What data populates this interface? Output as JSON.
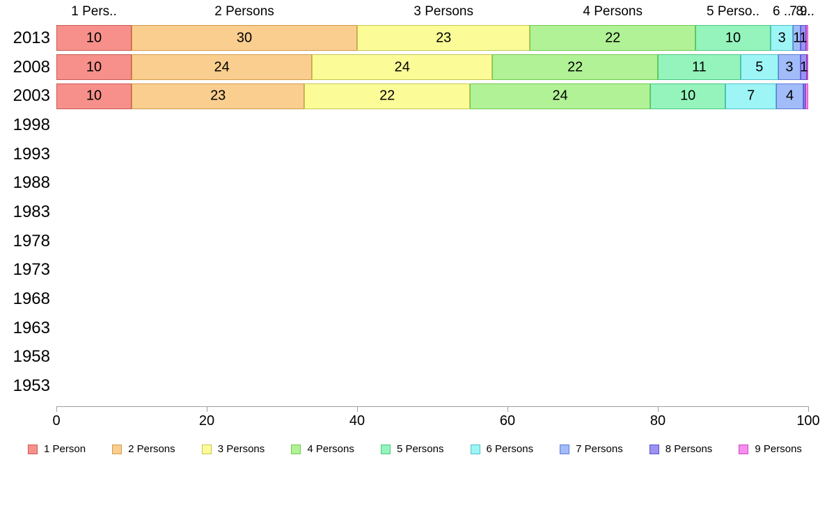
{
  "chart_data": {
    "type": "bar",
    "variant": "stacked-horizontal-percent",
    "title": "",
    "xlabel": "",
    "ylabel": "",
    "x_axis": {
      "min": 0,
      "max": 100,
      "ticks": [
        "0",
        "20",
        "40",
        "60",
        "80",
        "100"
      ]
    },
    "legend_position": "bottom",
    "grid": false,
    "categories": [
      "2013",
      "2008",
      "2003",
      "1998",
      "1993",
      "1988",
      "1983",
      "1978",
      "1973",
      "1968",
      "1963",
      "1958",
      "1953"
    ],
    "series": [
      {
        "name": "1 Person",
        "column_header": "1 Pers..",
        "fill": "#f7908a",
        "border": "#c85c55",
        "values": [
          10,
          10,
          10,
          null,
          null,
          null,
          null,
          null,
          null,
          null,
          null,
          null,
          null
        ]
      },
      {
        "name": "2 Persons",
        "column_header": "2 Persons",
        "fill": "#face8f",
        "border": "#d29b4b",
        "values": [
          30,
          24,
          23,
          null,
          null,
          null,
          null,
          null,
          null,
          null,
          null,
          null,
          null
        ]
      },
      {
        "name": "3 Persons",
        "column_header": "3 Persons",
        "fill": "#fbfb97",
        "border": "#c6c654",
        "values": [
          23,
          24,
          22,
          null,
          null,
          null,
          null,
          null,
          null,
          null,
          null,
          null,
          null
        ]
      },
      {
        "name": "4 Persons",
        "column_header": "4 Persons",
        "fill": "#b1f296",
        "border": "#71c94e",
        "values": [
          22,
          22,
          24,
          null,
          null,
          null,
          null,
          null,
          null,
          null,
          null,
          null,
          null
        ]
      },
      {
        "name": "5 Persons",
        "column_header": "5 Perso..",
        "fill": "#94f4bc",
        "border": "#4bc77f",
        "values": [
          10,
          11,
          10,
          null,
          null,
          null,
          null,
          null,
          null,
          null,
          null,
          null,
          null
        ]
      },
      {
        "name": "6 Persons",
        "column_header": "6 ..",
        "fill": "#9ef5f6",
        "border": "#4fc0c9",
        "values": [
          3,
          5,
          7,
          null,
          null,
          null,
          null,
          null,
          null,
          null,
          null,
          null,
          null
        ]
      },
      {
        "name": "7 Persons",
        "column_header": "7..",
        "fill": "#a1bcf8",
        "border": "#5e78d8",
        "values": [
          1,
          3,
          4,
          null,
          null,
          null,
          null,
          null,
          null,
          null,
          null,
          null,
          null
        ]
      },
      {
        "name": "8 Persons",
        "column_header": "8..",
        "fill": "#9c92f2",
        "border": "#5c4fd0",
        "values": [
          1,
          1,
          0,
          null,
          null,
          null,
          null,
          null,
          null,
          null,
          null,
          null,
          null
        ]
      },
      {
        "name": "9 Persons",
        "column_header": "9..",
        "fill": "#f78df0",
        "border": "#cc49c0",
        "values": [
          0,
          0,
          0,
          null,
          null,
          null,
          null,
          null,
          null,
          null,
          null,
          null,
          null
        ]
      }
    ],
    "rows": [
      {
        "labels": [
          "10",
          "30",
          "23",
          "22",
          "10",
          "3",
          "1",
          "1",
          ""
        ],
        "widths": [
          10,
          30,
          23,
          22,
          10,
          3,
          1,
          0.7,
          0.3
        ]
      },
      {
        "labels": [
          "10",
          "24",
          "24",
          "22",
          "11",
          "5",
          "3",
          "1",
          ""
        ],
        "widths": [
          10,
          24,
          24,
          22,
          11,
          5,
          3,
          0.85,
          0.15
        ]
      },
      {
        "labels": [
          "10",
          "23",
          "22",
          "24",
          "10",
          "7",
          "4",
          "",
          ""
        ],
        "widths": [
          10,
          23,
          22,
          24,
          10,
          6.75,
          3.6,
          0.25,
          0.4
        ]
      },
      {
        "labels": [],
        "widths": []
      },
      {
        "labels": [],
        "widths": []
      },
      {
        "labels": [],
        "widths": []
      },
      {
        "labels": [],
        "widths": []
      },
      {
        "labels": [],
        "widths": []
      },
      {
        "labels": [],
        "widths": []
      },
      {
        "labels": [],
        "widths": []
      },
      {
        "labels": [],
        "widths": []
      },
      {
        "labels": [],
        "widths": []
      },
      {
        "labels": [],
        "widths": []
      }
    ]
  }
}
